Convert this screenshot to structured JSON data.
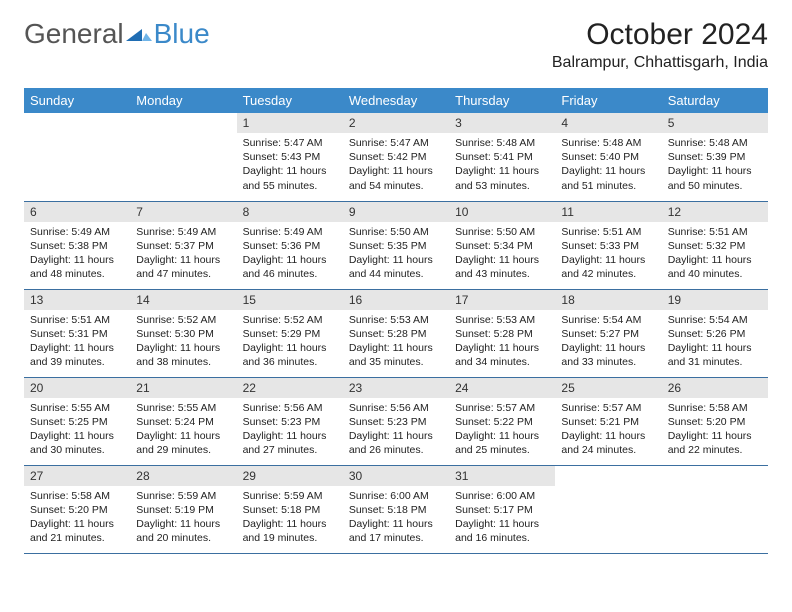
{
  "brand": {
    "general": "General",
    "blue": "Blue"
  },
  "title": "October 2024",
  "location": "Balrampur, Chhattisgarh, India",
  "colors": {
    "header_bg": "#3b89c9",
    "header_text": "#ffffff",
    "daynum_bg": "#e6e6e6",
    "row_border": "#3b6fa0",
    "brand_gray": "#555555",
    "brand_blue": "#3b89c9"
  },
  "weekdays": [
    "Sunday",
    "Monday",
    "Tuesday",
    "Wednesday",
    "Thursday",
    "Friday",
    "Saturday"
  ],
  "weeks": [
    [
      null,
      null,
      {
        "n": "1",
        "sr": "5:47 AM",
        "ss": "5:43 PM",
        "dl": "11 hours and 55 minutes."
      },
      {
        "n": "2",
        "sr": "5:47 AM",
        "ss": "5:42 PM",
        "dl": "11 hours and 54 minutes."
      },
      {
        "n": "3",
        "sr": "5:48 AM",
        "ss": "5:41 PM",
        "dl": "11 hours and 53 minutes."
      },
      {
        "n": "4",
        "sr": "5:48 AM",
        "ss": "5:40 PM",
        "dl": "11 hours and 51 minutes."
      },
      {
        "n": "5",
        "sr": "5:48 AM",
        "ss": "5:39 PM",
        "dl": "11 hours and 50 minutes."
      }
    ],
    [
      {
        "n": "6",
        "sr": "5:49 AM",
        "ss": "5:38 PM",
        "dl": "11 hours and 48 minutes."
      },
      {
        "n": "7",
        "sr": "5:49 AM",
        "ss": "5:37 PM",
        "dl": "11 hours and 47 minutes."
      },
      {
        "n": "8",
        "sr": "5:49 AM",
        "ss": "5:36 PM",
        "dl": "11 hours and 46 minutes."
      },
      {
        "n": "9",
        "sr": "5:50 AM",
        "ss": "5:35 PM",
        "dl": "11 hours and 44 minutes."
      },
      {
        "n": "10",
        "sr": "5:50 AM",
        "ss": "5:34 PM",
        "dl": "11 hours and 43 minutes."
      },
      {
        "n": "11",
        "sr": "5:51 AM",
        "ss": "5:33 PM",
        "dl": "11 hours and 42 minutes."
      },
      {
        "n": "12",
        "sr": "5:51 AM",
        "ss": "5:32 PM",
        "dl": "11 hours and 40 minutes."
      }
    ],
    [
      {
        "n": "13",
        "sr": "5:51 AM",
        "ss": "5:31 PM",
        "dl": "11 hours and 39 minutes."
      },
      {
        "n": "14",
        "sr": "5:52 AM",
        "ss": "5:30 PM",
        "dl": "11 hours and 38 minutes."
      },
      {
        "n": "15",
        "sr": "5:52 AM",
        "ss": "5:29 PM",
        "dl": "11 hours and 36 minutes."
      },
      {
        "n": "16",
        "sr": "5:53 AM",
        "ss": "5:28 PM",
        "dl": "11 hours and 35 minutes."
      },
      {
        "n": "17",
        "sr": "5:53 AM",
        "ss": "5:28 PM",
        "dl": "11 hours and 34 minutes."
      },
      {
        "n": "18",
        "sr": "5:54 AM",
        "ss": "5:27 PM",
        "dl": "11 hours and 33 minutes."
      },
      {
        "n": "19",
        "sr": "5:54 AM",
        "ss": "5:26 PM",
        "dl": "11 hours and 31 minutes."
      }
    ],
    [
      {
        "n": "20",
        "sr": "5:55 AM",
        "ss": "5:25 PM",
        "dl": "11 hours and 30 minutes."
      },
      {
        "n": "21",
        "sr": "5:55 AM",
        "ss": "5:24 PM",
        "dl": "11 hours and 29 minutes."
      },
      {
        "n": "22",
        "sr": "5:56 AM",
        "ss": "5:23 PM",
        "dl": "11 hours and 27 minutes."
      },
      {
        "n": "23",
        "sr": "5:56 AM",
        "ss": "5:23 PM",
        "dl": "11 hours and 26 minutes."
      },
      {
        "n": "24",
        "sr": "5:57 AM",
        "ss": "5:22 PM",
        "dl": "11 hours and 25 minutes."
      },
      {
        "n": "25",
        "sr": "5:57 AM",
        "ss": "5:21 PM",
        "dl": "11 hours and 24 minutes."
      },
      {
        "n": "26",
        "sr": "5:58 AM",
        "ss": "5:20 PM",
        "dl": "11 hours and 22 minutes."
      }
    ],
    [
      {
        "n": "27",
        "sr": "5:58 AM",
        "ss": "5:20 PM",
        "dl": "11 hours and 21 minutes."
      },
      {
        "n": "28",
        "sr": "5:59 AM",
        "ss": "5:19 PM",
        "dl": "11 hours and 20 minutes."
      },
      {
        "n": "29",
        "sr": "5:59 AM",
        "ss": "5:18 PM",
        "dl": "11 hours and 19 minutes."
      },
      {
        "n": "30",
        "sr": "6:00 AM",
        "ss": "5:18 PM",
        "dl": "11 hours and 17 minutes."
      },
      {
        "n": "31",
        "sr": "6:00 AM",
        "ss": "5:17 PM",
        "dl": "11 hours and 16 minutes."
      },
      null,
      null
    ]
  ],
  "labels": {
    "sunrise": "Sunrise: ",
    "sunset": "Sunset: ",
    "daylight": "Daylight: "
  }
}
